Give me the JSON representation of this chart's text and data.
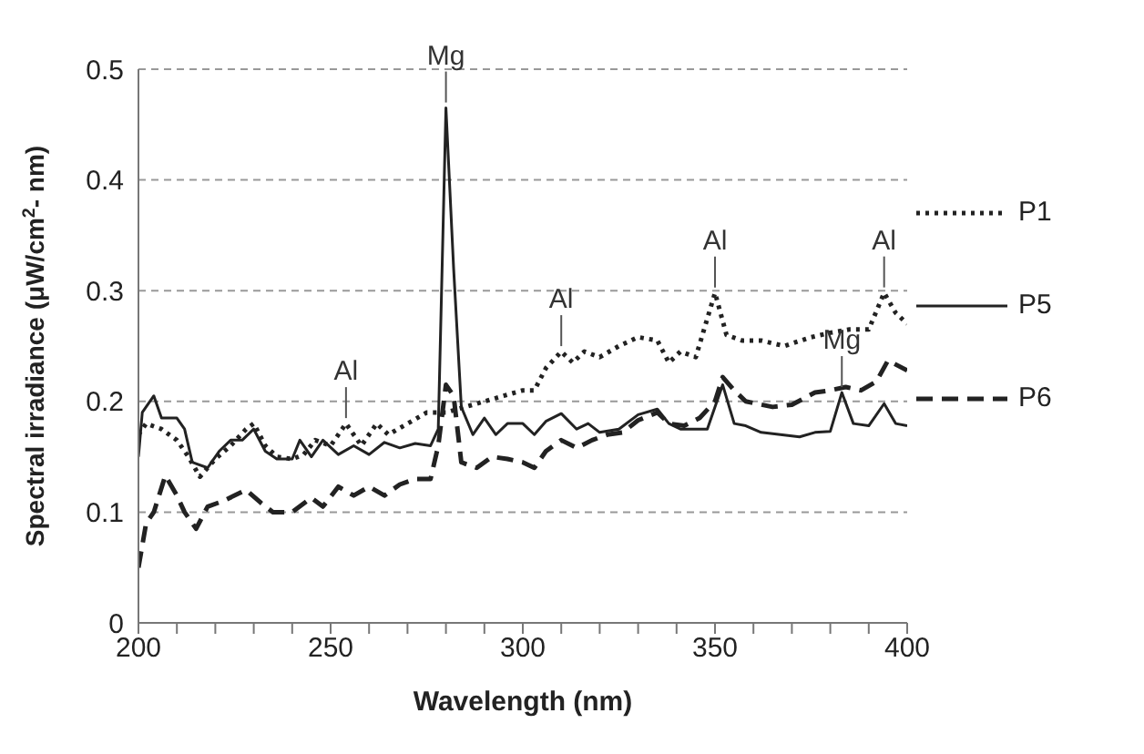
{
  "chart_data": {
    "type": "line",
    "xlabel": "Wavelength (nm)",
    "ylabel": "Spectral irradiance (μW/cm$^{2}$- nm)",
    "xlim": [
      200,
      400
    ],
    "xticks": [
      200,
      {
        "value": 210,
        "label": null
      },
      {
        "value": 220,
        "label": null
      },
      {
        "value": 230,
        "label": null
      },
      {
        "value": 240,
        "label": null
      },
      250,
      {
        "value": 260,
        "label": null
      },
      {
        "value": 270,
        "label": null
      },
      {
        "value": 280,
        "label": null
      },
      {
        "value": 290,
        "label": null
      },
      300,
      {
        "value": 310,
        "label": null
      },
      {
        "value": 320,
        "label": null
      },
      {
        "value": 330,
        "label": null
      },
      {
        "value": 340,
        "label": null
      },
      350,
      {
        "value": 360,
        "label": null
      },
      {
        "value": 370,
        "label": null
      },
      {
        "value": 380,
        "label": null
      },
      {
        "value": 390,
        "label": null
      },
      400
    ],
    "ylim": [
      0,
      0.5
    ],
    "yticks": [
      0,
      0.1,
      0.2,
      0.3,
      0.4,
      0.5
    ],
    "grid": "y",
    "legend": "right",
    "marker": "none",
    "series": [
      {
        "name": "P1",
        "color": "#222222",
        "line_style": "dotted",
        "x": [
          200,
          202,
          206,
          210,
          213,
          216,
          220,
          224,
          228,
          230,
          233,
          236,
          240,
          243,
          246,
          250,
          254,
          258,
          262,
          265,
          270,
          275,
          280,
          285,
          290,
          295,
          300,
          303,
          306,
          310,
          313,
          316,
          320,
          325,
          330,
          335,
          338,
          341,
          345,
          350,
          353,
          357,
          362,
          368,
          375,
          380,
          385,
          390,
          394,
          397,
          400
        ],
        "values": [
          0.17,
          0.18,
          0.175,
          0.165,
          0.15,
          0.132,
          0.148,
          0.16,
          0.175,
          0.18,
          0.16,
          0.15,
          0.148,
          0.152,
          0.165,
          0.16,
          0.18,
          0.16,
          0.18,
          0.17,
          0.18,
          0.19,
          0.19,
          0.195,
          0.2,
          0.205,
          0.21,
          0.21,
          0.23,
          0.245,
          0.235,
          0.245,
          0.24,
          0.25,
          0.258,
          0.255,
          0.235,
          0.245,
          0.24,
          0.298,
          0.26,
          0.255,
          0.255,
          0.25,
          0.258,
          0.262,
          0.265,
          0.265,
          0.298,
          0.28,
          0.27
        ]
      },
      {
        "name": "P5",
        "color": "#222222",
        "line_style": "solid",
        "x": [
          200,
          201,
          204,
          206,
          210,
          212,
          214,
          218,
          221,
          224,
          227,
          230,
          233,
          236,
          240,
          242,
          245,
          248,
          252,
          256,
          260,
          264,
          268,
          272,
          276,
          278,
          280,
          282,
          284,
          287,
          290,
          293,
          296,
          300,
          303,
          306,
          310,
          314,
          317,
          320,
          325,
          330,
          335,
          338,
          341,
          345,
          348,
          352,
          355,
          358,
          362,
          367,
          372,
          376,
          380,
          383,
          386,
          390,
          394,
          397,
          400
        ],
        "values": [
          0.15,
          0.19,
          0.205,
          0.185,
          0.185,
          0.175,
          0.145,
          0.14,
          0.155,
          0.165,
          0.165,
          0.175,
          0.155,
          0.148,
          0.148,
          0.165,
          0.15,
          0.165,
          0.152,
          0.16,
          0.152,
          0.163,
          0.158,
          0.162,
          0.16,
          0.175,
          0.465,
          0.32,
          0.195,
          0.17,
          0.185,
          0.17,
          0.18,
          0.18,
          0.17,
          0.182,
          0.189,
          0.175,
          0.18,
          0.172,
          0.175,
          0.188,
          0.193,
          0.18,
          0.175,
          0.175,
          0.175,
          0.215,
          0.18,
          0.178,
          0.172,
          0.17,
          0.168,
          0.172,
          0.173,
          0.208,
          0.18,
          0.178,
          0.198,
          0.18,
          0.178
        ]
      },
      {
        "name": "P6",
        "color": "#222222",
        "line_style": "dashed",
        "x": [
          200,
          202,
          204,
          207,
          210,
          212,
          215,
          218,
          222,
          228,
          232,
          235,
          240,
          245,
          248,
          252,
          256,
          260,
          264,
          268,
          272,
          276,
          278,
          280,
          282,
          284,
          288,
          292,
          296,
          300,
          303,
          306,
          310,
          314,
          318,
          322,
          326,
          330,
          335,
          338,
          342,
          346,
          350,
          352,
          355,
          358,
          365,
          370,
          376,
          380,
          384,
          388,
          392,
          395,
          400
        ],
        "values": [
          0.05,
          0.09,
          0.1,
          0.133,
          0.115,
          0.1,
          0.085,
          0.105,
          0.11,
          0.12,
          0.108,
          0.1,
          0.1,
          0.113,
          0.105,
          0.123,
          0.115,
          0.123,
          0.115,
          0.125,
          0.13,
          0.13,
          0.16,
          0.215,
          0.205,
          0.145,
          0.14,
          0.15,
          0.148,
          0.145,
          0.14,
          0.155,
          0.165,
          0.158,
          0.165,
          0.17,
          0.172,
          0.183,
          0.19,
          0.18,
          0.178,
          0.185,
          0.2,
          0.222,
          0.21,
          0.2,
          0.195,
          0.197,
          0.208,
          0.21,
          0.213,
          0.21,
          0.218,
          0.237,
          0.228
        ]
      }
    ],
    "annotations": [
      {
        "text": "Mg",
        "x": 280,
        "y": 0.465
      },
      {
        "text": "Al",
        "x": 254,
        "y": 0.18
      },
      {
        "text": "Al",
        "x": 310,
        "y": 0.245
      },
      {
        "text": "Al",
        "x": 350,
        "y": 0.298
      },
      {
        "text": "Mg",
        "x": 383,
        "y": 0.208
      },
      {
        "text": "Al",
        "x": 394,
        "y": 0.298
      }
    ]
  }
}
